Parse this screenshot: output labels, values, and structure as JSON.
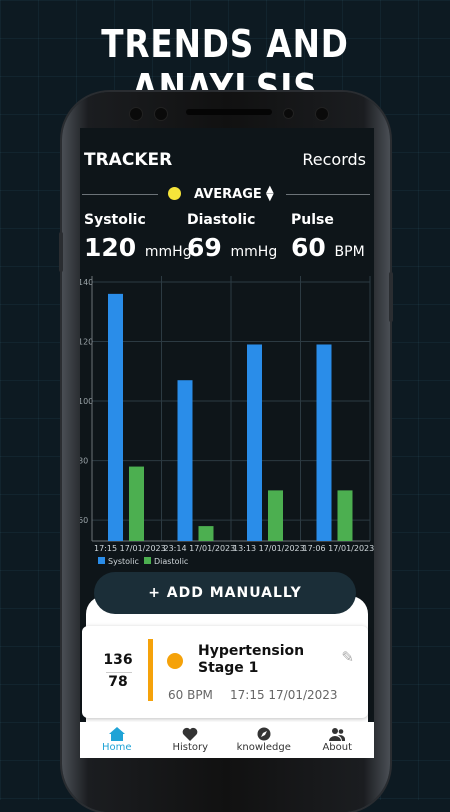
{
  "headline": "TRENDS AND ANAYLSIS",
  "app": {
    "title": "TRACKER",
    "records_link": "Records",
    "filter_label": "AVERAGE",
    "filter_dot_color": "#f5e43a"
  },
  "stats": {
    "systolic": {
      "label": "Systolic",
      "value": "120",
      "unit": "mmHg"
    },
    "diastolic": {
      "label": "Diastolic",
      "value": "69",
      "unit": "mmHg"
    },
    "pulse": {
      "label": "Pulse",
      "value": "60",
      "unit": "BPM"
    }
  },
  "chart_data": {
    "type": "bar",
    "categories": [
      "17:15 17/01/2023",
      "23:14 17/01/2023",
      "13:13 17/01/2023",
      "17:06 17/01/2023"
    ],
    "series": [
      {
        "name": "Systolic",
        "values": [
          136,
          107,
          119,
          119
        ],
        "color": "#2a8de9"
      },
      {
        "name": "Diastolic",
        "values": [
          78,
          58,
          70,
          70
        ],
        "color": "#4caf50"
      }
    ],
    "yticks": [
      60,
      80,
      100,
      120,
      140
    ],
    "ylim": [
      53,
      142
    ],
    "grid": true,
    "legend": "bottom-left"
  },
  "add_button_label": "+ ADD MANUALLY",
  "record": {
    "systolic": "136",
    "diastolic": "78",
    "stage": "Hypertension Stage 1",
    "stage_color": "#f5a20a",
    "pulse": "60 BPM",
    "time": "17:15 17/01/2023"
  },
  "nav": [
    {
      "label": "Home",
      "icon": "home-icon",
      "active": true
    },
    {
      "label": "History",
      "icon": "heart-icon",
      "active": false
    },
    {
      "label": "knowledge",
      "icon": "compass-icon",
      "active": false
    },
    {
      "label": "About",
      "icon": "people-icon",
      "active": false
    }
  ]
}
